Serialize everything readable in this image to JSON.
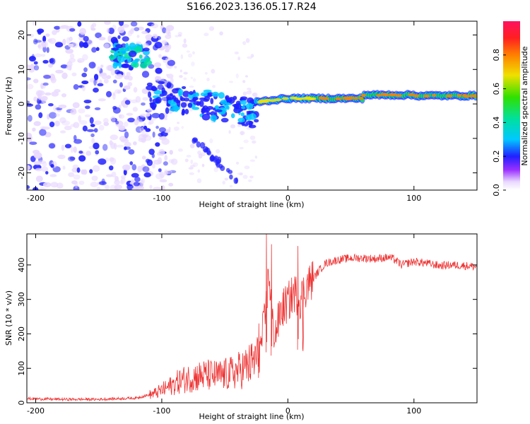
{
  "title": "S166.2023.136.05.17.R24",
  "chart_data": [
    {
      "type": "heatmap",
      "name": "spectrogram",
      "xlabel": "Height of straight line (km)",
      "ylabel": "Frequency (Hz)",
      "xlim": [
        -207,
        150
      ],
      "ylim": [
        -25,
        24
      ],
      "xticks": [
        -200,
        -100,
        0,
        100
      ],
      "yticks": [
        -20,
        -10,
        0,
        10,
        20
      ],
      "colorbar": {
        "label": "Normalized spectral amplitude",
        "range": [
          0,
          1
        ],
        "ticks": [
          0.0,
          0.2,
          0.4,
          0.6,
          0.8
        ]
      },
      "features": [
        {
          "name": "noise-cloud",
          "x_range": [
            -207,
            -100
          ],
          "freq_range": [
            -25,
            24
          ],
          "amplitude": 0.1
        },
        {
          "name": "upper-cluster",
          "x_range": [
            -140,
            -110
          ],
          "freq_range": [
            11,
            17
          ],
          "amplitude": 0.3
        },
        {
          "name": "descending-band",
          "x_range": [
            -110,
            -25
          ],
          "freq_range": [
            -8,
            8
          ],
          "amplitude": 0.3
        },
        {
          "name": "faint-tail",
          "x_range": [
            -75,
            -40
          ],
          "freq_range": [
            -22,
            -9
          ],
          "amplitude": 0.1
        },
        {
          "name": "steady-line",
          "x_range": [
            -25,
            150
          ],
          "center_freq": [
            0,
            3
          ],
          "amplitude": 0.9
        }
      ]
    },
    {
      "type": "line",
      "name": "snr",
      "xlabel": "Height of straight line (km)",
      "ylabel": "SNR (10 * v/v)",
      "xlim": [
        -207,
        150
      ],
      "ylim": [
        0,
        490
      ],
      "xticks": [
        -200,
        -100,
        0,
        100
      ],
      "yticks": [
        0,
        100,
        200,
        300,
        400
      ],
      "color": "#ee3333",
      "x": [
        -207,
        -180,
        -150,
        -120,
        -105,
        -95,
        -85,
        -75,
        -65,
        -55,
        -45,
        -35,
        -28,
        -22,
        -18,
        -15,
        -12,
        -10,
        -5,
        0,
        5,
        10,
        15,
        20,
        25,
        30,
        40,
        50,
        60,
        70,
        80,
        85,
        90,
        100,
        110,
        120,
        130,
        140,
        150
      ],
      "y": [
        12,
        10,
        10,
        14,
        28,
        45,
        65,
        75,
        80,
        78,
        85,
        100,
        115,
        150,
        250,
        380,
        220,
        200,
        270,
        290,
        320,
        300,
        340,
        360,
        385,
        405,
        415,
        420,
        420,
        418,
        422,
        415,
        400,
        410,
        405,
        398,
        400,
        398,
        395
      ],
      "spikes": [
        {
          "x": -17,
          "y": 490
        },
        {
          "x": -13,
          "y": 460
        },
        {
          "x": 8,
          "y": 455
        },
        {
          "x": -23,
          "y": 230
        },
        {
          "x": 12,
          "y": 150
        }
      ]
    }
  ]
}
